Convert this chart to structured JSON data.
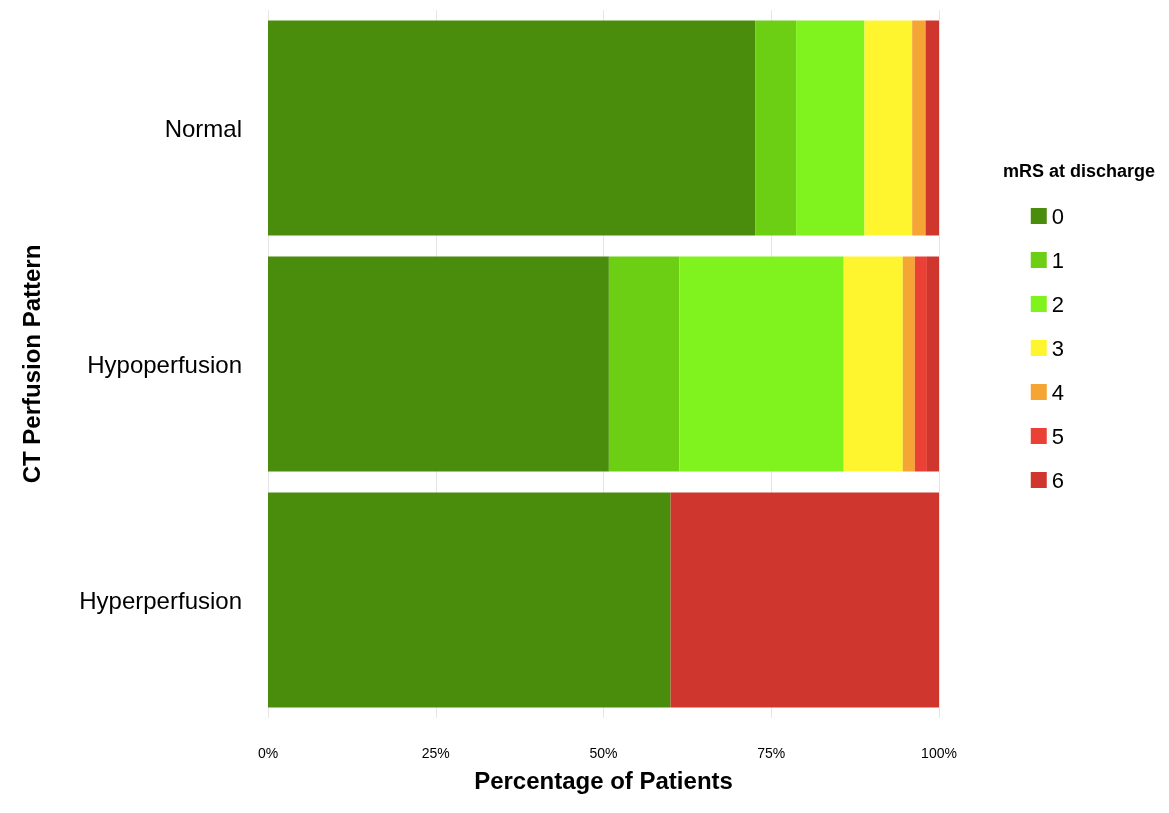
{
  "chart_data": {
    "type": "bar",
    "orientation": "horizontal",
    "stacked": true,
    "xlabel": "Percentage of Patients",
    "ylabel": "CT Perfusion Pattern",
    "legend_title": "mRS at discharge",
    "categories": [
      "Normal",
      "Hypoperfusion",
      "Hyperperfusion"
    ],
    "series": [
      {
        "name": "0",
        "color": "#4a8c0c",
        "values": [
          72.6,
          50.8,
          60
        ]
      },
      {
        "name": "1",
        "color": "#6dcf14",
        "values": [
          6.1,
          10.5,
          null
        ]
      },
      {
        "name": "2",
        "color": "#80f31e",
        "values": [
          10.2,
          24.5,
          null
        ]
      },
      {
        "name": "3",
        "color": "#fff52e",
        "values": [
          7.1,
          8.8,
          null
        ]
      },
      {
        "name": "4",
        "color": "#f5a533",
        "values": [
          2.0,
          1.8,
          null
        ]
      },
      {
        "name": "5",
        "color": "#ea4036",
        "values": [
          null,
          1.8,
          null
        ]
      },
      {
        "name": "6",
        "color": "#cf372e",
        "values": [
          2.0,
          1.8,
          40
        ]
      }
    ],
    "xlim": [
      0,
      100
    ],
    "xticks": [
      {
        "value": 0,
        "label": "0%"
      },
      {
        "value": 25,
        "label": "25%"
      },
      {
        "value": 50,
        "label": "50%"
      },
      {
        "value": 75,
        "label": "75%"
      },
      {
        "value": 100,
        "label": "100%"
      }
    ],
    "grid": "x",
    "legend": "right"
  }
}
